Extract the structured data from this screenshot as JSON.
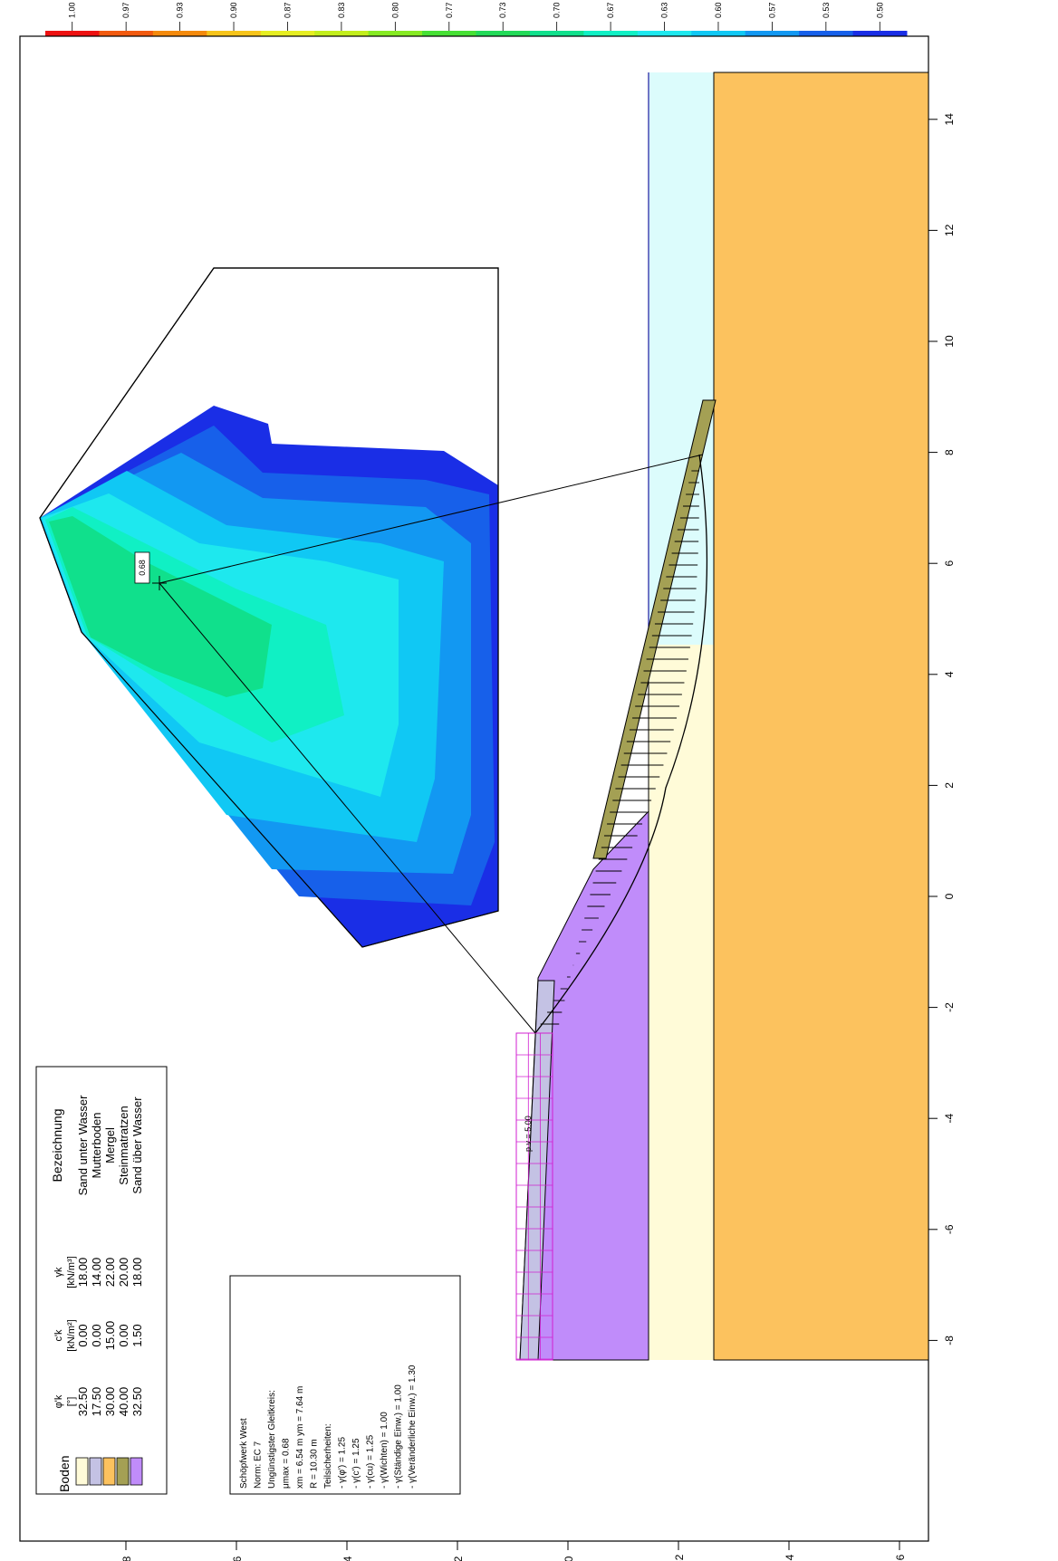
{
  "colorbar": {
    "labels": [
      "1.00",
      "0.97",
      "0.93",
      "0.90",
      "0.87",
      "0.83",
      "0.80",
      "0.77",
      "0.73",
      "0.70",
      "0.67",
      "0.63",
      "0.60",
      "0.57",
      "0.53",
      "0.50"
    ],
    "colors": [
      "#ee1111",
      "#f25a0f",
      "#f48a0c",
      "#f6c41a",
      "#e6ee22",
      "#c2ee1c",
      "#86ea22",
      "#46e034",
      "#22da58",
      "#10e08c",
      "#10f0c4",
      "#1ee8ee",
      "#10c8f4",
      "#1298f2",
      "#1760ea",
      "#1a2ee6"
    ]
  },
  "chart_data": {
    "type": "diagram",
    "x_axis_ticks": [
      "-8",
      "-6",
      "-4",
      "-2",
      "0",
      "2",
      "4",
      "6",
      "8",
      "10",
      "12",
      "14"
    ],
    "y_axis_ticks": [
      "8",
      "6",
      "4",
      "2",
      "0",
      "-2",
      "-4",
      "-6"
    ],
    "soil_layers": [
      {
        "name": "Sand unter Wasser",
        "color": "#fffbd8"
      },
      {
        "name": "Mutterboden",
        "color": "#c4c2e4"
      },
      {
        "name": "Mergel",
        "color": "#fcc25e"
      },
      {
        "name": "Steinmatratzen",
        "color": "#a4a054"
      },
      {
        "name": "Sand über Wasser",
        "color": "#c08cfa"
      }
    ],
    "water_color": "#dcfcfc",
    "load_label": "p v = 5.00",
    "min_factor_label": "0.68"
  },
  "legend": {
    "col_headers": [
      "Boden",
      "φ'k",
      "[°]",
      "c'k",
      "[kN/m²]",
      "γk",
      "[kN/m³]",
      "Bezeichnung"
    ],
    "rows": [
      {
        "phi": "32.50",
        "c": "0.00",
        "gamma": "18.00",
        "name": "Sand unter Wasser"
      },
      {
        "phi": "17.50",
        "c": "0.00",
        "gamma": "14.00",
        "name": "Mutterboden"
      },
      {
        "phi": "30.00",
        "c": "15.00",
        "gamma": "22.00",
        "name": "Mergel"
      },
      {
        "phi": "40.00",
        "c": "0.00",
        "gamma": "20.00",
        "name": "Steinmatratzen"
      },
      {
        "phi": "32.50",
        "c": "1.50",
        "gamma": "18.00",
        "name": "Sand über Wasser"
      }
    ]
  },
  "info": {
    "lines": [
      "Schöpfwerk West",
      "Norm: EC 7",
      "Ungünstigster Gleitkreis:",
      "μmax = 0.68",
      "xm = 6.54 m   ym = 7.64 m",
      "R = 10.30 m",
      "Teilsicherheiten:",
      "- γ(φ') = 1.25",
      "- γ(c') = 1.25",
      "- γ(cu) = 1.25",
      "- γ(Wichten) = 1.00",
      "- γ(Ständige Einw.) = 1.00",
      "- γ(Veränderliche Einw.) = 1.30"
    ]
  }
}
